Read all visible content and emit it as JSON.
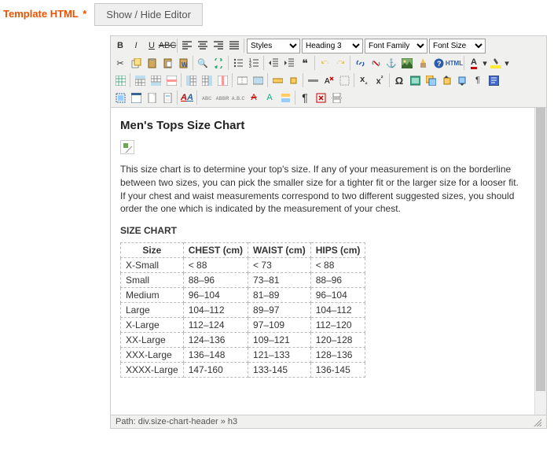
{
  "field": {
    "label": "Template HTML",
    "required_mark": "*"
  },
  "buttons": {
    "toggle_editor": "Show / Hide Editor"
  },
  "toolbar": {
    "styles_placeholder": "Styles",
    "format_placeholder": "Heading 3",
    "fontfamily_placeholder": "Font Family",
    "fontsize_placeholder": "Font Size"
  },
  "content": {
    "title": "Men's Tops Size Chart",
    "description": "This size chart is to determine your top's size. If any of your measurement is on the borderline between two sizes, you can pick the smaller size for a tighter fit or the larger size for a looser fit. If your chest and waist measurements correspond to two different suggested sizes, you should order the one which is indicated by the measurement of your chest.",
    "chart_label": "SIZE CHART",
    "table": {
      "columns": [
        "Size",
        "CHEST (cm)",
        "WAIST (cm)",
        "HIPS (cm)"
      ],
      "rows": [
        [
          "X-Small",
          "< 88",
          "< 73",
          "< 88"
        ],
        [
          "Small",
          "88–96",
          "73–81",
          "88–96"
        ],
        [
          "Medium",
          "96–104",
          "81–89",
          "96–104"
        ],
        [
          "Large",
          "104–112",
          "89–97",
          "104–112"
        ],
        [
          "X-Large",
          "112–124",
          "97–109",
          "112–120"
        ],
        [
          "XX-Large",
          "124–136",
          "109–121",
          "120–128"
        ],
        [
          "XXX-Large",
          "136–148",
          "121–133",
          "128–136"
        ],
        [
          "XXXX-Large",
          "147-160",
          "133-145",
          "136-145"
        ]
      ]
    }
  },
  "statusbar": {
    "path_label": "Path:",
    "path": "div.size-chart-header » h3"
  },
  "colors": {
    "accent": "#eb5202",
    "toolbar_bg": "#f0f0ee",
    "border": "#cccccc",
    "text": "#333333"
  }
}
